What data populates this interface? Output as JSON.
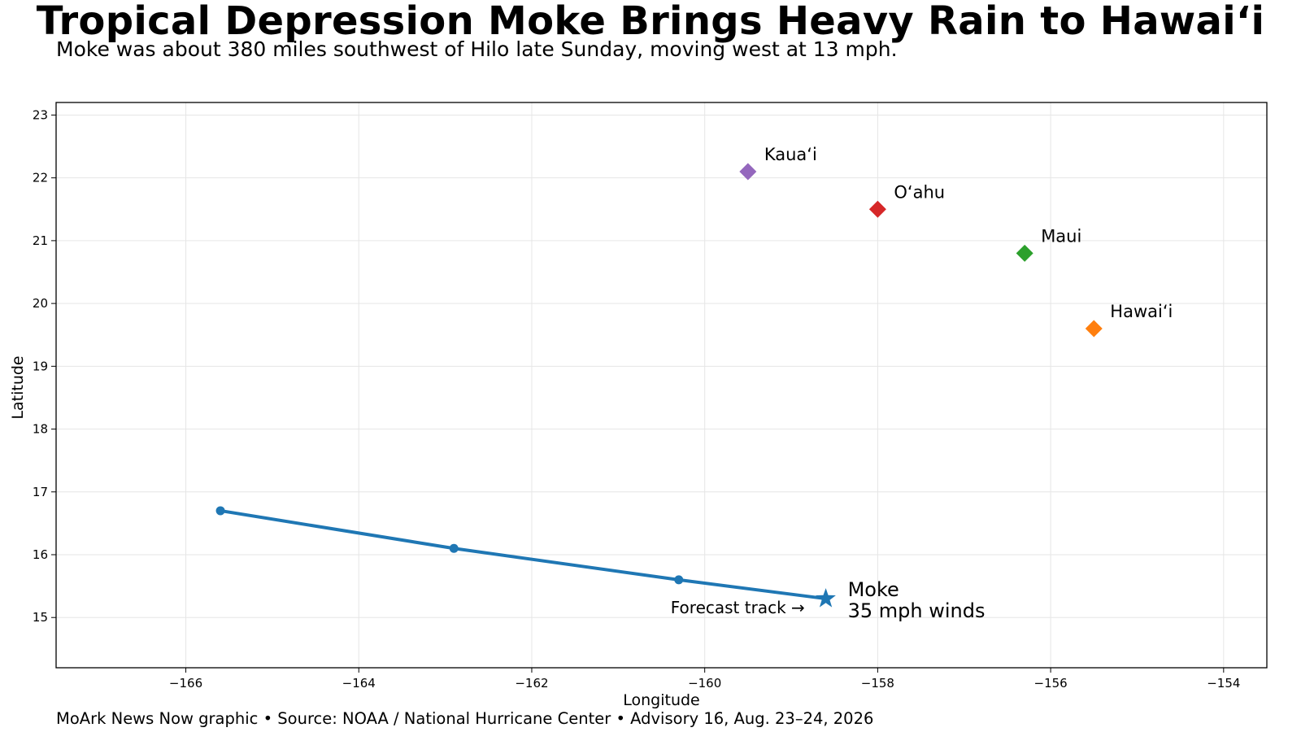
{
  "title": "Tropical Depression Moke Brings Heavy Rain to Hawai‘i",
  "subtitle": "Moke was about 380 miles southwest of Hilo late Sunday, moving west at 13 mph.",
  "footer": "MoArk News Now graphic • Source: NOAA / National Hurricane Center • Advisory 16, Aug. 23–24, 2026",
  "chart_data": {
    "type": "scatter",
    "xlabel": "Longitude",
    "ylabel": "Latitude",
    "xlim": [
      -167.5,
      -153.5
    ],
    "ylim": [
      14.2,
      23.2
    ],
    "xticks": [
      -166,
      -164,
      -162,
      -160,
      -158,
      -156,
      -154
    ],
    "xtick_labels": [
      "−166",
      "−164",
      "−162",
      "−160",
      "−158",
      "−156",
      "−154"
    ],
    "yticks": [
      15,
      16,
      17,
      18,
      19,
      20,
      21,
      22,
      23
    ],
    "ytick_labels": [
      "15",
      "16",
      "17",
      "18",
      "19",
      "20",
      "21",
      "22",
      "23"
    ],
    "grid": true,
    "track": {
      "color": "#1f77b4",
      "points": [
        {
          "x": -158.6,
          "y": 15.3
        },
        {
          "x": -160.3,
          "y": 15.6
        },
        {
          "x": -162.9,
          "y": 16.1
        },
        {
          "x": -165.6,
          "y": 16.7
        }
      ],
      "label": "Forecast track →"
    },
    "storm": {
      "x": -158.6,
      "y": 15.3,
      "color": "#1f77b4",
      "name": "Moke",
      "winds": "35 mph winds"
    },
    "islands": [
      {
        "name": "Kaua‘i",
        "x": -159.5,
        "y": 22.1,
        "color": "#9467bd"
      },
      {
        "name": "O‘ahu",
        "x": -158.0,
        "y": 21.5,
        "color": "#d62728"
      },
      {
        "name": "Maui",
        "x": -156.3,
        "y": 20.8,
        "color": "#2ca02c"
      },
      {
        "name": "Hawai‘i",
        "x": -155.5,
        "y": 19.6,
        "color": "#ff7f0e"
      }
    ]
  }
}
